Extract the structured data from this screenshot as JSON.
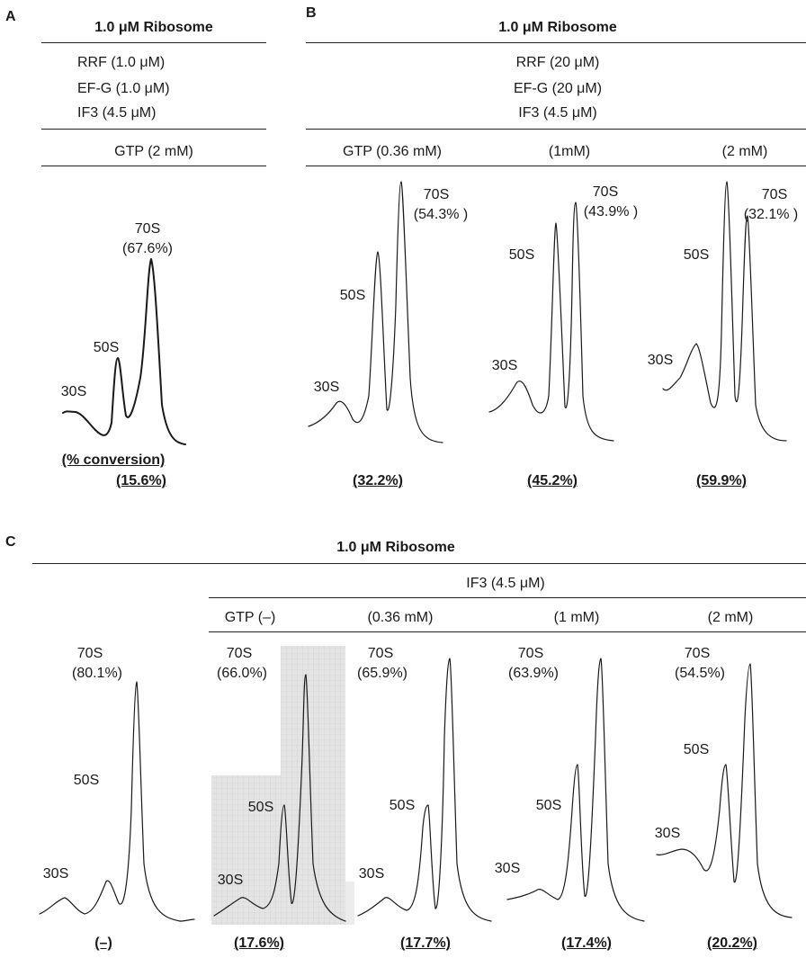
{
  "panelA": {
    "letter": "A",
    "header": "1.0 μM Ribosome",
    "conditions": [
      "RRF (1.0 μM)",
      "EF-G (1.0 μM)",
      "IF3 (4.5 μM)"
    ],
    "gtp": "GTP (2 mM)",
    "peaks": {
      "p30": "30S",
      "p50": "50S",
      "p70": "70S",
      "p70_pct": "(67.6%)"
    },
    "conversion_label": "(% conversion)",
    "conversion": "(15.6%)"
  },
  "panelB": {
    "letter": "B",
    "header": "1.0 μM Ribosome",
    "conditions": [
      "RRF (20 μM)",
      "EF-G (20 μM)",
      "IF3 (4.5 μM)"
    ],
    "cols": [
      {
        "label": "GTP (0.36 mM)",
        "p30": "30S",
        "p50": "50S",
        "p70": "70S",
        "p70_pct": "(54.3% )",
        "conversion": "(32.2%)"
      },
      {
        "label": "(1mM)",
        "p30": "30S",
        "p50": "50S",
        "p70": "70S",
        "p70_pct": "(43.9% )",
        "conversion": "(45.2%)"
      },
      {
        "label": "(2 mM)",
        "p30": "30S",
        "p50": "50S",
        "p70": "70S",
        "p70_pct": "(32.1% )",
        "conversion": "(59.9%)"
      }
    ]
  },
  "panelC": {
    "letter": "C",
    "header": "1.0 μM Ribosome",
    "subheader": "IF3 (4.5 μM)",
    "cols": [
      {
        "label": "",
        "p30": "30S",
        "p50": "50S",
        "p70": "70S",
        "p70_pct": "(80.1%)",
        "conversion": "(–)"
      },
      {
        "label": "GTP (–)",
        "p30": "30S",
        "p50": "50S",
        "p70": "70S",
        "p70_pct": "(66.0%)",
        "conversion": "(17.6%)"
      },
      {
        "label": "(0.36 mM)",
        "p30": "30S",
        "p50": "50S",
        "p70": "70S",
        "p70_pct": "(65.9%)",
        "conversion": "(17.7%)"
      },
      {
        "label": "(1 mM)",
        "p30": "30S",
        "p50": "50S",
        "p70": "70S",
        "p70_pct": "(63.9%)",
        "conversion": "(17.4%)"
      },
      {
        "label": "(2 mM)",
        "p30": "30S",
        "p50": "50S",
        "p70": "70S",
        "p70_pct": "(54.5%)",
        "conversion": "(20.2%)"
      }
    ]
  }
}
